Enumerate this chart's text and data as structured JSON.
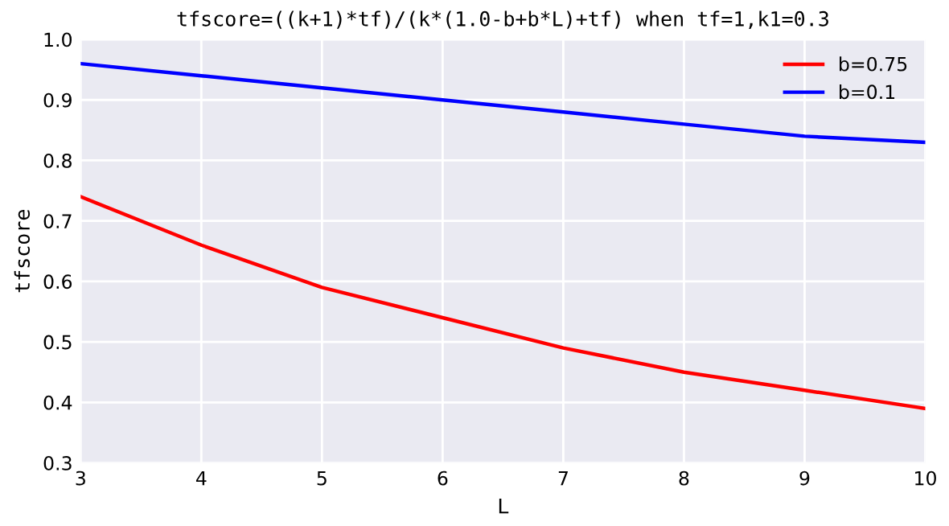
{
  "chart_data": {
    "type": "line",
    "title": "tfscore=((k+1)*tf)/(k*(1.0-b+b*L)+tf) when tf=1,k1=0.3",
    "xlabel": "L",
    "ylabel": "tfscore",
    "x": [
      3,
      4,
      5,
      6,
      7,
      8,
      9,
      10
    ],
    "series": [
      {
        "name": "b=0.75",
        "color": "#ff0000",
        "values": [
          0.74,
          0.66,
          0.59,
          0.54,
          0.49,
          0.45,
          0.42,
          0.39
        ]
      },
      {
        "name": "b=0.1",
        "color": "#0000ff",
        "values": [
          0.96,
          0.94,
          0.92,
          0.9,
          0.88,
          0.86,
          0.84,
          0.83
        ]
      }
    ],
    "xlim": [
      3,
      10
    ],
    "ylim": [
      0.3,
      1.0
    ],
    "xticks": [
      3,
      4,
      5,
      6,
      7,
      8,
      9,
      10
    ],
    "yticks": [
      0.3,
      0.4,
      0.5,
      0.6,
      0.7,
      0.8,
      0.9,
      {
        "value": 1,
        "label": "1.0"
      }
    ],
    "grid": true,
    "legend": "top right",
    "marker": "none",
    "line_style": "solid"
  }
}
